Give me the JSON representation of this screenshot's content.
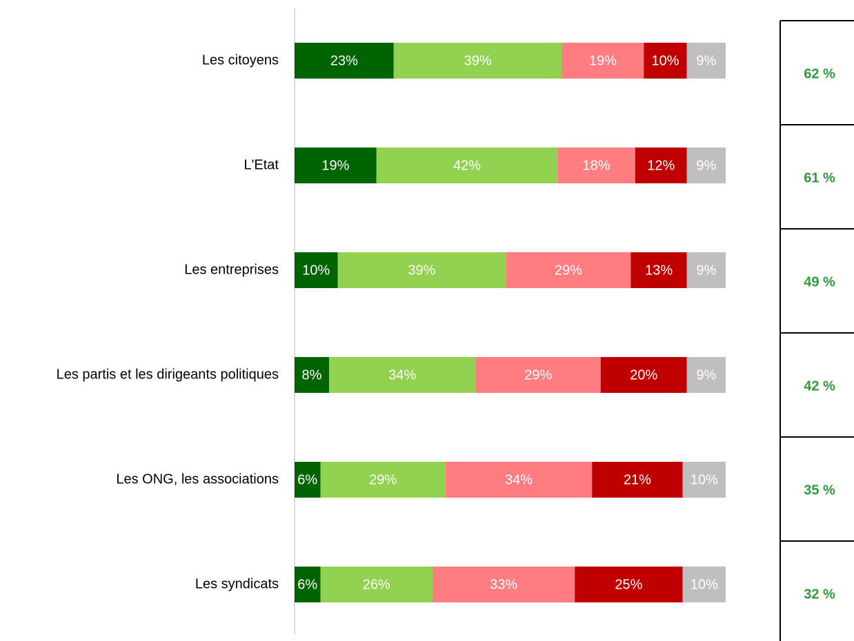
{
  "chart_data": {
    "type": "stacked_barh",
    "categories": [
      "Les citoyens",
      "L'Etat",
      "Les entreprises",
      "Les partis et les dirigeants politiques",
      "Les ONG, les associations",
      "Les syndicats"
    ],
    "series": [
      {
        "color": "#006400",
        "values": [
          23,
          19,
          10,
          8,
          6,
          6
        ],
        "value_labels": [
          "23%",
          "19%",
          "10%",
          "8%",
          "6%",
          "6%"
        ]
      },
      {
        "color": "#92d050",
        "values": [
          39,
          42,
          39,
          34,
          29,
          26
        ],
        "value_labels": [
          "39%",
          "42%",
          "39%",
          "34%",
          "29%",
          "26%"
        ]
      },
      {
        "color": "#ff7c80",
        "values": [
          19,
          18,
          29,
          29,
          34,
          33
        ],
        "value_labels": [
          "19%",
          "18%",
          "29%",
          "29%",
          "34%",
          "33%"
        ]
      },
      {
        "color": "#c00000",
        "values": [
          10,
          12,
          13,
          20,
          21,
          25
        ],
        "value_labels": [
          "10%",
          "12%",
          "13%",
          "20%",
          "21%",
          "25%"
        ]
      },
      {
        "color": "#bfbfbf",
        "values": [
          9,
          9,
          9,
          9,
          10,
          10
        ],
        "value_labels": [
          "9%",
          "9%",
          "9%",
          "9%",
          "10%",
          "10%"
        ]
      }
    ],
    "xlim": [
      0,
      100
    ],
    "side_table": [
      "62 %",
      "61 %",
      "49 %",
      "42 %",
      "35 %",
      "32 %"
    ]
  }
}
